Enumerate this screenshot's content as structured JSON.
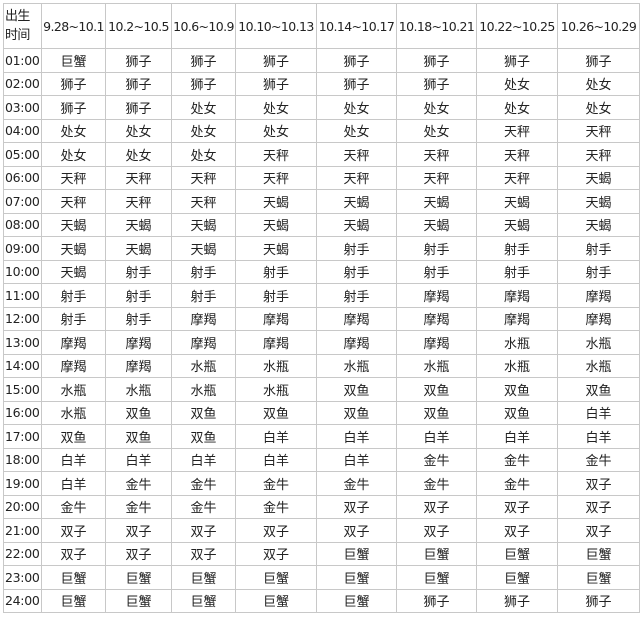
{
  "header": {
    "corner_label": "出生时间",
    "columns": [
      "9.28~10.1",
      "10.2~10.5",
      "10.6~10.9",
      "10.10~10.13",
      "10.14~10.17",
      "10.18~10.21",
      "10.22~10.25",
      "10.26~10.29"
    ]
  },
  "rows": [
    {
      "time": "01:00",
      "cells": [
        "巨蟹",
        "狮子",
        "狮子",
        "狮子",
        "狮子",
        "狮子",
        "狮子",
        "狮子"
      ]
    },
    {
      "time": "02:00",
      "cells": [
        "狮子",
        "狮子",
        "狮子",
        "狮子",
        "狮子",
        "狮子",
        "处女",
        "处女"
      ]
    },
    {
      "time": "03:00",
      "cells": [
        "狮子",
        "狮子",
        "处女",
        "处女",
        "处女",
        "处女",
        "处女",
        "处女"
      ]
    },
    {
      "time": "04:00",
      "cells": [
        "处女",
        "处女",
        "处女",
        "处女",
        "处女",
        "处女",
        "天秤",
        "天秤"
      ]
    },
    {
      "time": "05:00",
      "cells": [
        "处女",
        "处女",
        "处女",
        "天秤",
        "天秤",
        "天秤",
        "天秤",
        "天秤"
      ]
    },
    {
      "time": "06:00",
      "cells": [
        "天秤",
        "天秤",
        "天秤",
        "天秤",
        "天秤",
        "天秤",
        "天秤",
        "天蝎"
      ]
    },
    {
      "time": "07:00",
      "cells": [
        "天秤",
        "天秤",
        "天秤",
        "天蝎",
        "天蝎",
        "天蝎",
        "天蝎",
        "天蝎"
      ]
    },
    {
      "time": "08:00",
      "cells": [
        "天蝎",
        "天蝎",
        "天蝎",
        "天蝎",
        "天蝎",
        "天蝎",
        "天蝎",
        "天蝎"
      ]
    },
    {
      "time": "09:00",
      "cells": [
        "天蝎",
        "天蝎",
        "天蝎",
        "天蝎",
        "射手",
        "射手",
        "射手",
        "射手"
      ]
    },
    {
      "time": "10:00",
      "cells": [
        "天蝎",
        "射手",
        "射手",
        "射手",
        "射手",
        "射手",
        "射手",
        "射手"
      ]
    },
    {
      "time": "11:00",
      "cells": [
        "射手",
        "射手",
        "射手",
        "射手",
        "射手",
        "摩羯",
        "摩羯",
        "摩羯"
      ]
    },
    {
      "time": "12:00",
      "cells": [
        "射手",
        "射手",
        "摩羯",
        "摩羯",
        "摩羯",
        "摩羯",
        "摩羯",
        "摩羯"
      ]
    },
    {
      "time": "13:00",
      "cells": [
        "摩羯",
        "摩羯",
        "摩羯",
        "摩羯",
        "摩羯",
        "摩羯",
        "水瓶",
        "水瓶"
      ]
    },
    {
      "time": "14:00",
      "cells": [
        "摩羯",
        "摩羯",
        "水瓶",
        "水瓶",
        "水瓶",
        "水瓶",
        "水瓶",
        "水瓶"
      ]
    },
    {
      "time": "15:00",
      "cells": [
        "水瓶",
        "水瓶",
        "水瓶",
        "水瓶",
        "双鱼",
        "双鱼",
        "双鱼",
        "双鱼"
      ]
    },
    {
      "time": "16:00",
      "cells": [
        "水瓶",
        "双鱼",
        "双鱼",
        "双鱼",
        "双鱼",
        "双鱼",
        "双鱼",
        "白羊"
      ]
    },
    {
      "time": "17:00",
      "cells": [
        "双鱼",
        "双鱼",
        "双鱼",
        "白羊",
        "白羊",
        "白羊",
        "白羊",
        "白羊"
      ]
    },
    {
      "time": "18:00",
      "cells": [
        "白羊",
        "白羊",
        "白羊",
        "白羊",
        "白羊",
        "金牛",
        "金牛",
        "金牛"
      ]
    },
    {
      "time": "19:00",
      "cells": [
        "白羊",
        "金牛",
        "金牛",
        "金牛",
        "金牛",
        "金牛",
        "金牛",
        "双子"
      ]
    },
    {
      "time": "20:00",
      "cells": [
        "金牛",
        "金牛",
        "金牛",
        "金牛",
        "双子",
        "双子",
        "双子",
        "双子"
      ]
    },
    {
      "time": "21:00",
      "cells": [
        "双子",
        "双子",
        "双子",
        "双子",
        "双子",
        "双子",
        "双子",
        "双子"
      ]
    },
    {
      "time": "22:00",
      "cells": [
        "双子",
        "双子",
        "双子",
        "双子",
        "巨蟹",
        "巨蟹",
        "巨蟹",
        "巨蟹"
      ]
    },
    {
      "time": "23:00",
      "cells": [
        "巨蟹",
        "巨蟹",
        "巨蟹",
        "巨蟹",
        "巨蟹",
        "巨蟹",
        "巨蟹",
        "巨蟹"
      ]
    },
    {
      "time": "24:00",
      "cells": [
        "巨蟹",
        "巨蟹",
        "巨蟹",
        "巨蟹",
        "巨蟹",
        "狮子",
        "狮子",
        "狮子"
      ]
    }
  ]
}
